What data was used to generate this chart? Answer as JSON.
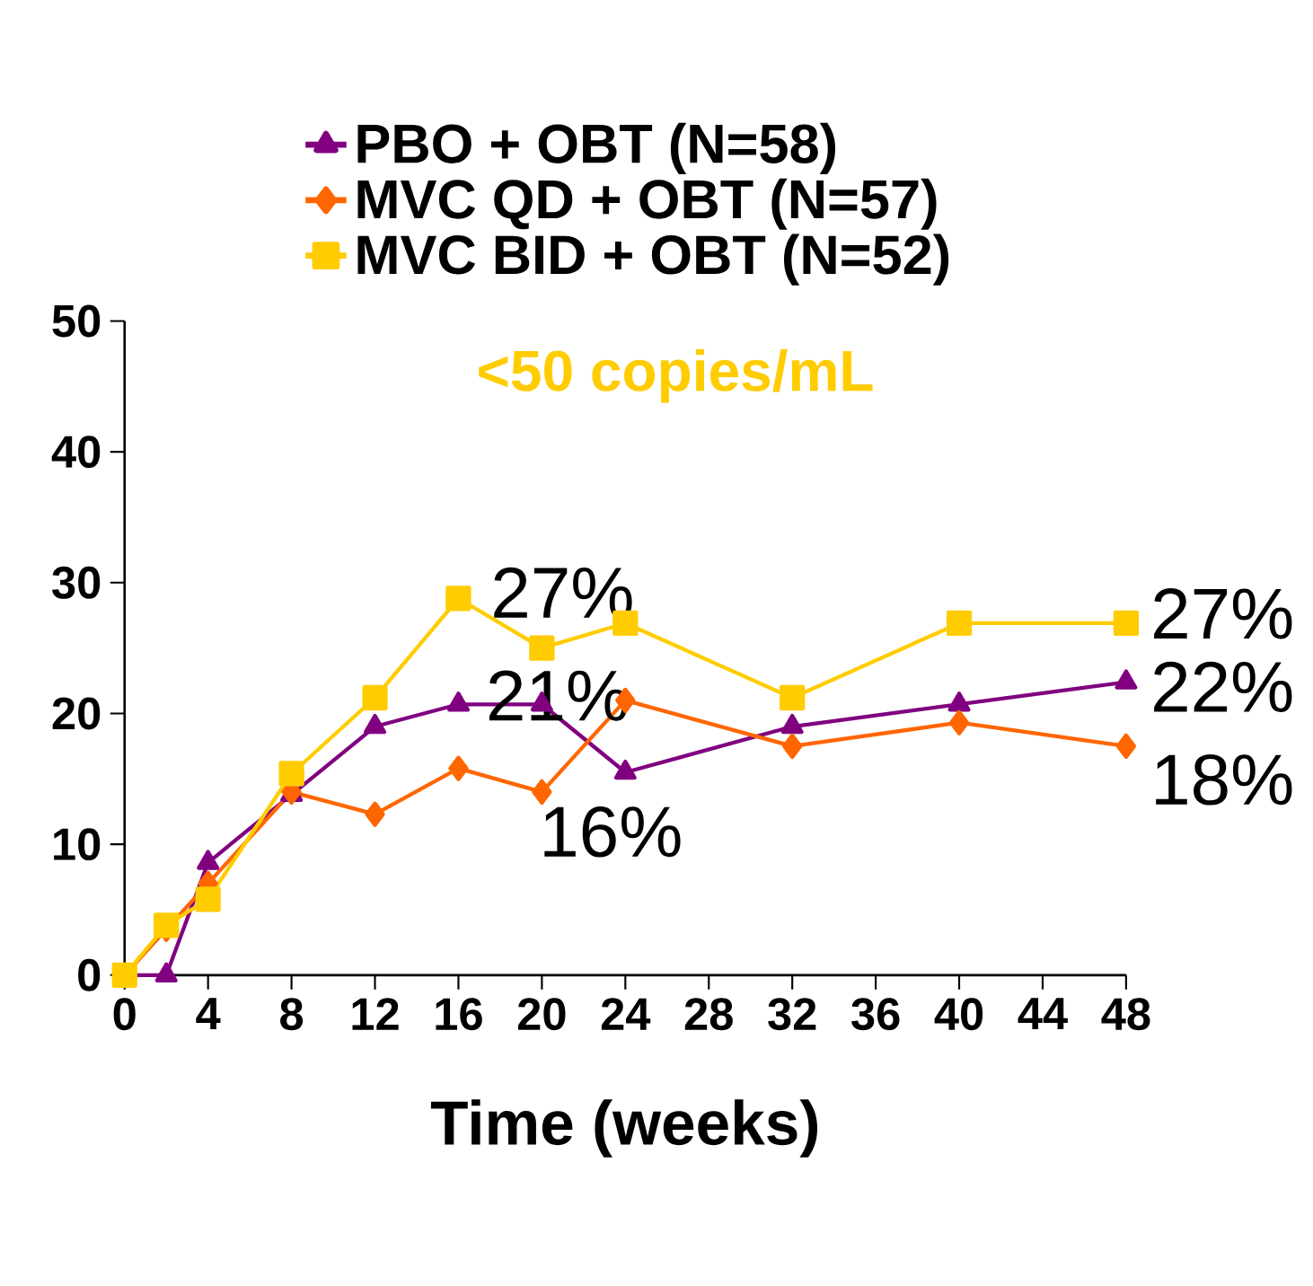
{
  "chart_data": {
    "type": "line",
    "xlabel": "Time (weeks)",
    "xlim": [
      0,
      48
    ],
    "ylim": [
      0,
      50
    ],
    "xticks": [
      0,
      4,
      8,
      12,
      16,
      20,
      24,
      28,
      32,
      36,
      40,
      44,
      48
    ],
    "yticks": [
      0,
      10,
      20,
      30,
      40,
      50
    ],
    "x": [
      0,
      2,
      4,
      8,
      12,
      16,
      20,
      24,
      32,
      40,
      48
    ],
    "legend": "top",
    "grid": false,
    "series": [
      {
        "name": "PBO + OBT (N=58)",
        "color": "#800080",
        "marker": "triangle",
        "values": [
          0,
          0,
          8.6,
          13.8,
          19,
          20.7,
          20.7,
          15.5,
          19,
          20.7,
          22.4
        ],
        "value_labels": [
          null,
          null,
          null,
          null,
          null,
          null,
          null,
          "16%",
          null,
          null,
          "22%"
        ]
      },
      {
        "name": "MVC QD + OBT (N=57)",
        "color": "#ff6600",
        "marker": "diamond",
        "values": [
          0,
          3.5,
          7,
          14,
          12.3,
          15.8,
          14,
          21,
          17.5,
          19.3,
          17.5
        ],
        "value_labels": [
          null,
          null,
          null,
          null,
          null,
          null,
          null,
          "21%",
          null,
          null,
          "18%"
        ]
      },
      {
        "name": "MVC BID + OBT (N=52)",
        "color": "#ffcc00",
        "marker": "square",
        "values": [
          0,
          3.8,
          5.8,
          15.4,
          21.2,
          28.8,
          25,
          26.9,
          21.2,
          26.9,
          26.9
        ],
        "value_labels": [
          null,
          null,
          null,
          null,
          null,
          null,
          null,
          "27%",
          null,
          null,
          "27%"
        ]
      }
    ],
    "annotations": [
      "<50 copies/mL"
    ]
  }
}
